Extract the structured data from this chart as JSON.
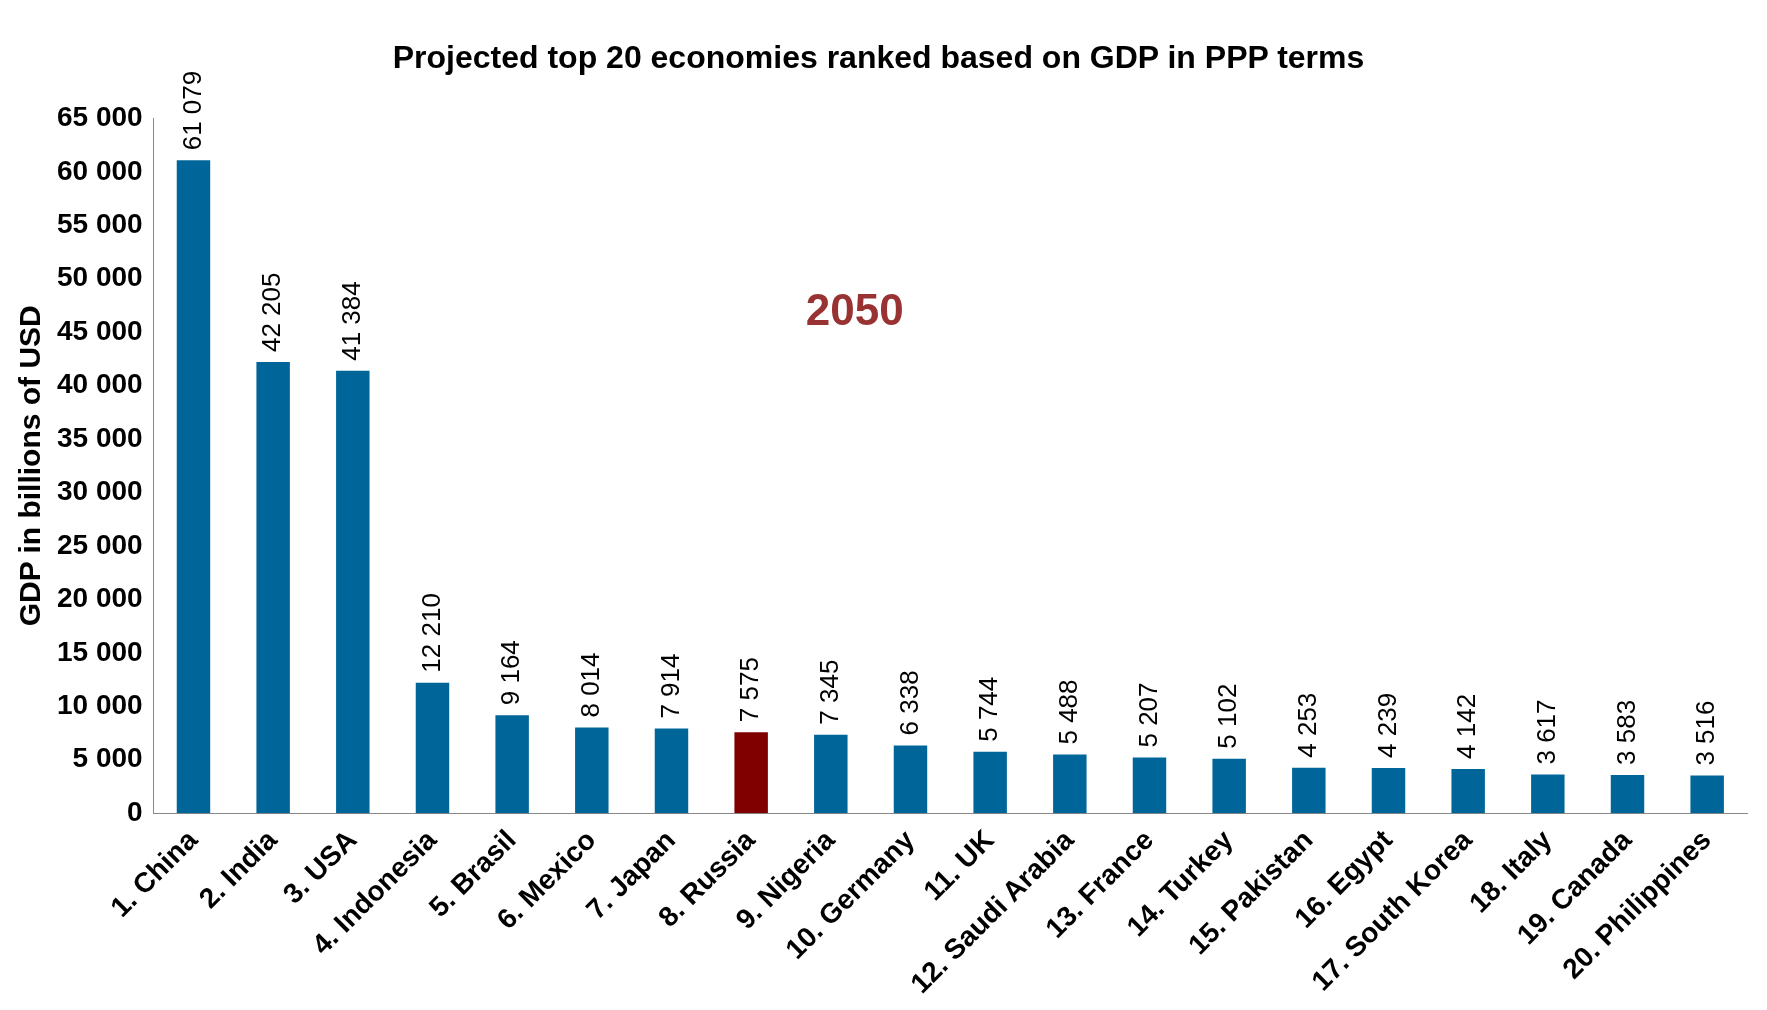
{
  "chart_data": {
    "type": "bar",
    "title": "Projected top 20 economies ranked based on GDP in PPP terms",
    "ylabel": "GDP in billions of USD",
    "annotations": [
      "2050"
    ],
    "categories": [
      "1. China",
      "2. India",
      "3. USA",
      "4. Indonesia",
      "5. Brasil",
      "6. Mexico",
      "7. Japan",
      "8. Russia",
      "9. Nigeria",
      "10. Germany",
      "11. UK",
      "12. Saudi Arabia",
      "13. France",
      "14. Turkey",
      "15. Pakistan",
      "16. Egypt",
      "17. South Korea",
      "18. Italy",
      "19. Canada",
      "20. Philippines"
    ],
    "values": [
      61079,
      42205,
      41384,
      12210,
      9164,
      8014,
      7914,
      7575,
      7345,
      6338,
      5744,
      5488,
      5207,
      5102,
      4253,
      4239,
      4142,
      3617,
      3583,
      3516
    ],
    "value_labels": [
      "61 079",
      "42 205",
      "41 384",
      "12 210",
      "9 164",
      "8 014",
      "7 914",
      "7 575",
      "7 345",
      "6 338",
      "5 744",
      "5 488",
      "5 207",
      "5 102",
      "4 253",
      "4 239",
      "4 142",
      "3 617",
      "3 583",
      "3 516"
    ],
    "colors": [
      "#006699",
      "#006699",
      "#006699",
      "#006699",
      "#006699",
      "#006699",
      "#006699",
      "#800000",
      "#006699",
      "#006699",
      "#006699",
      "#006699",
      "#006699",
      "#006699",
      "#006699",
      "#006699",
      "#006699",
      "#006699",
      "#006699",
      "#006699"
    ],
    "ylim": [
      0,
      65000
    ],
    "yticks": [
      {
        "value": 0,
        "label": "0"
      },
      {
        "value": 5000,
        "label": "5 000"
      },
      {
        "value": 10000,
        "label": "10 000"
      },
      {
        "value": 15000,
        "label": "15 000"
      },
      {
        "value": 20000,
        "label": "20 000"
      },
      {
        "value": 25000,
        "label": "25 000"
      },
      {
        "value": 30000,
        "label": "30 000"
      },
      {
        "value": 35000,
        "label": "35 000"
      },
      {
        "value": 40000,
        "label": "40 000"
      },
      {
        "value": 45000,
        "label": "45 000"
      },
      {
        "value": 50000,
        "label": "50 000"
      },
      {
        "value": 55000,
        "label": "55 000"
      },
      {
        "value": 60000,
        "label": "60 000"
      },
      {
        "value": 65000,
        "label": "65 000"
      }
    ],
    "grid": false,
    "legend": false
  }
}
